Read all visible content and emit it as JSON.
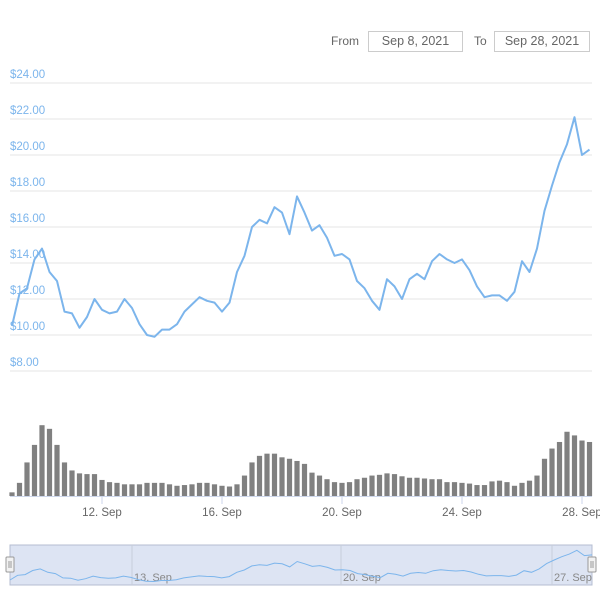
{
  "range_selector": {
    "from_label": "From",
    "from_value": "Sep 8, 2021",
    "to_label": "To",
    "to_value": "Sep 28, 2021"
  },
  "colors": {
    "price_line": "#7cb5ec",
    "volume_bars": "#808080",
    "navigator_fill": "#dde4f3",
    "axis_label": "#7cb5ec",
    "grid": "#e6e6e6"
  },
  "chart_data": [
    {
      "type": "line",
      "name": "",
      "x_start": "2021-09-09T00:00",
      "x_interval_hours": 6,
      "yticks": [
        "$8.00",
        "$10.00",
        "$12.00",
        "$14.00",
        "$16.00",
        "$18.00",
        "$20.00",
        "$22.00",
        "$24.00"
      ],
      "ylim": [
        8,
        24
      ],
      "grid": true,
      "values": [
        10.5,
        12.3,
        12.6,
        14.2,
        14.8,
        13.5,
        13.0,
        11.3,
        11.2,
        10.4,
        11.0,
        12.0,
        11.4,
        11.2,
        11.3,
        12.0,
        11.5,
        10.6,
        10.0,
        9.9,
        10.3,
        10.3,
        10.6,
        11.3,
        11.7,
        12.1,
        11.9,
        11.8,
        11.3,
        11.8,
        13.5,
        14.4,
        16.0,
        16.4,
        16.2,
        17.1,
        16.8,
        15.6,
        17.7,
        16.8,
        15.8,
        16.1,
        15.4,
        14.4,
        14.5,
        14.2,
        13.0,
        12.6,
        11.9,
        11.4,
        13.1,
        12.7,
        12.0,
        13.1,
        13.4,
        13.1,
        14.1,
        14.5,
        14.2,
        14.0,
        14.2,
        13.6,
        12.7,
        12.1,
        12.2,
        12.2,
        11.9,
        12.4,
        14.1,
        13.5,
        14.8,
        16.9,
        18.3,
        19.6,
        20.6,
        22.1,
        20.0,
        20.3
      ]
    },
    {
      "type": "bar",
      "name": "",
      "x_start": "2021-09-09T00:00",
      "x_interval_hours": 6,
      "unit": "relative (% of max)",
      "values": [
        5,
        18,
        46,
        70,
        97,
        92,
        70,
        46,
        35,
        31,
        30,
        30,
        22,
        19,
        18,
        16,
        16,
        16,
        18,
        18,
        18,
        16,
        14,
        15,
        16,
        18,
        18,
        16,
        14,
        13,
        16,
        28,
        46,
        55,
        58,
        58,
        53,
        51,
        48,
        44,
        32,
        28,
        23,
        19,
        18,
        19,
        23,
        25,
        28,
        29,
        31,
        30,
        27,
        25,
        25,
        24,
        23,
        23,
        19,
        19,
        18,
        17,
        15,
        15,
        20,
        21,
        19,
        14,
        18,
        21,
        28,
        51,
        65,
        74,
        88,
        83,
        76,
        74
      ],
      "xticks": [
        "12. Sep",
        "16. Sep",
        "20. Sep",
        "24. Sep",
        "28. Sep"
      ]
    }
  ],
  "navigator": {
    "labels": [
      "13. Sep",
      "20. Sep",
      "27. Sep"
    ]
  }
}
